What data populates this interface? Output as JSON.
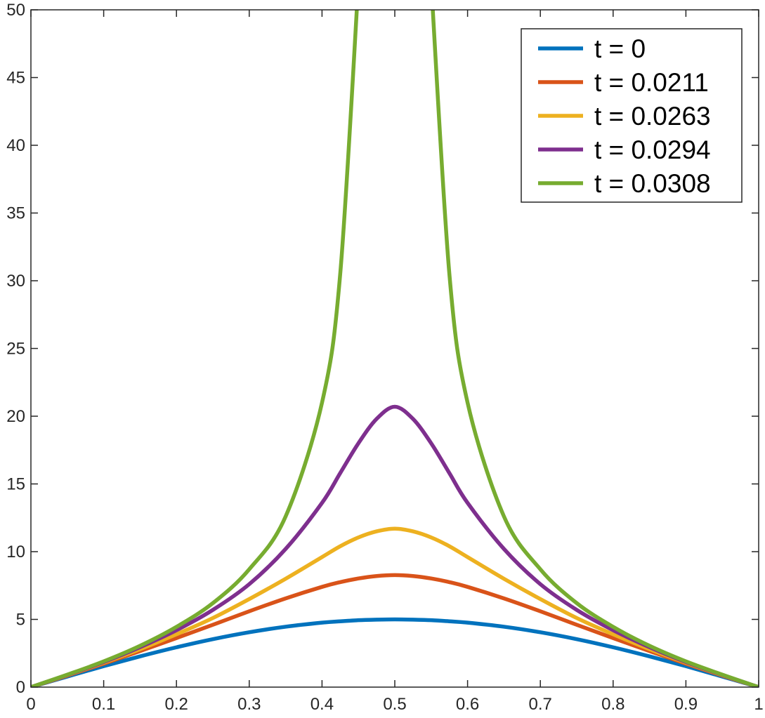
{
  "chart_data": {
    "type": "line",
    "title": "",
    "xlabel": "",
    "ylabel": "",
    "xlim": [
      0,
      1
    ],
    "ylim": [
      0,
      50
    ],
    "xticks": [
      0,
      0.1,
      0.2,
      0.3,
      0.4,
      0.5,
      0.6,
      0.7,
      0.8,
      0.9,
      1
    ],
    "yticks": [
      0,
      5,
      10,
      15,
      20,
      25,
      30,
      35,
      40,
      45,
      50
    ],
    "xtick_labels": [
      "0",
      "0.1",
      "0.2",
      "0.3",
      "0.4",
      "0.5",
      "0.6",
      "0.7",
      "0.8",
      "0.9",
      "1"
    ],
    "ytick_labels": [
      "0",
      "5",
      "10",
      "15",
      "20",
      "25",
      "30",
      "35",
      "40",
      "45",
      "50"
    ],
    "grid": false,
    "legend_position": "top-right",
    "x": [
      0,
      0.05,
      0.1,
      0.15,
      0.2,
      0.25,
      0.3,
      0.35,
      0.4,
      0.425,
      0.45,
      0.475,
      0.5,
      0.525,
      0.55,
      0.575,
      0.6,
      0.65,
      0.7,
      0.75,
      0.8,
      0.85,
      0.9,
      0.95,
      1
    ],
    "series": [
      {
        "name": "t = 0",
        "color": "#0072BD",
        "values": [
          0,
          0.78,
          1.55,
          2.27,
          2.94,
          3.54,
          4.05,
          4.46,
          4.76,
          4.86,
          4.94,
          4.98,
          5.0,
          4.98,
          4.94,
          4.86,
          4.76,
          4.46,
          4.05,
          3.54,
          2.94,
          2.27,
          1.55,
          0.78,
          0
        ]
      },
      {
        "name": "t = 0.0211",
        "color": "#D95319",
        "values": [
          0,
          0.85,
          1.73,
          2.66,
          3.62,
          4.6,
          5.6,
          6.55,
          7.4,
          7.75,
          8.02,
          8.2,
          8.27,
          8.2,
          8.02,
          7.75,
          7.4,
          6.55,
          5.6,
          4.6,
          3.62,
          2.66,
          1.73,
          0.85,
          0
        ]
      },
      {
        "name": "t = 0.0263",
        "color": "#EDB120",
        "values": [
          0,
          0.88,
          1.8,
          2.8,
          3.9,
          5.1,
          6.5,
          8.0,
          9.6,
          10.4,
          11.05,
          11.5,
          11.7,
          11.5,
          11.05,
          10.4,
          9.6,
          8.0,
          6.5,
          5.1,
          3.9,
          2.8,
          1.8,
          0.88,
          0
        ]
      },
      {
        "name": "t = 0.0294",
        "color": "#7E2F8E",
        "values": [
          0,
          0.9,
          1.85,
          2.95,
          4.2,
          5.7,
          7.6,
          10.2,
          13.6,
          15.8,
          18.0,
          19.8,
          20.7,
          19.8,
          18.0,
          15.8,
          13.6,
          10.2,
          7.6,
          5.7,
          4.2,
          2.95,
          1.85,
          0.9,
          0
        ]
      },
      {
        "name": "t = 0.0308",
        "color": "#77AC30",
        "values": [
          0,
          0.92,
          1.9,
          3.05,
          4.45,
          6.2,
          8.7,
          12.6,
          21.0,
          30.5,
          52,
          null,
          null,
          null,
          52,
          30.5,
          21.0,
          12.6,
          8.7,
          6.2,
          4.45,
          3.05,
          1.9,
          0.92,
          0
        ]
      }
    ]
  }
}
